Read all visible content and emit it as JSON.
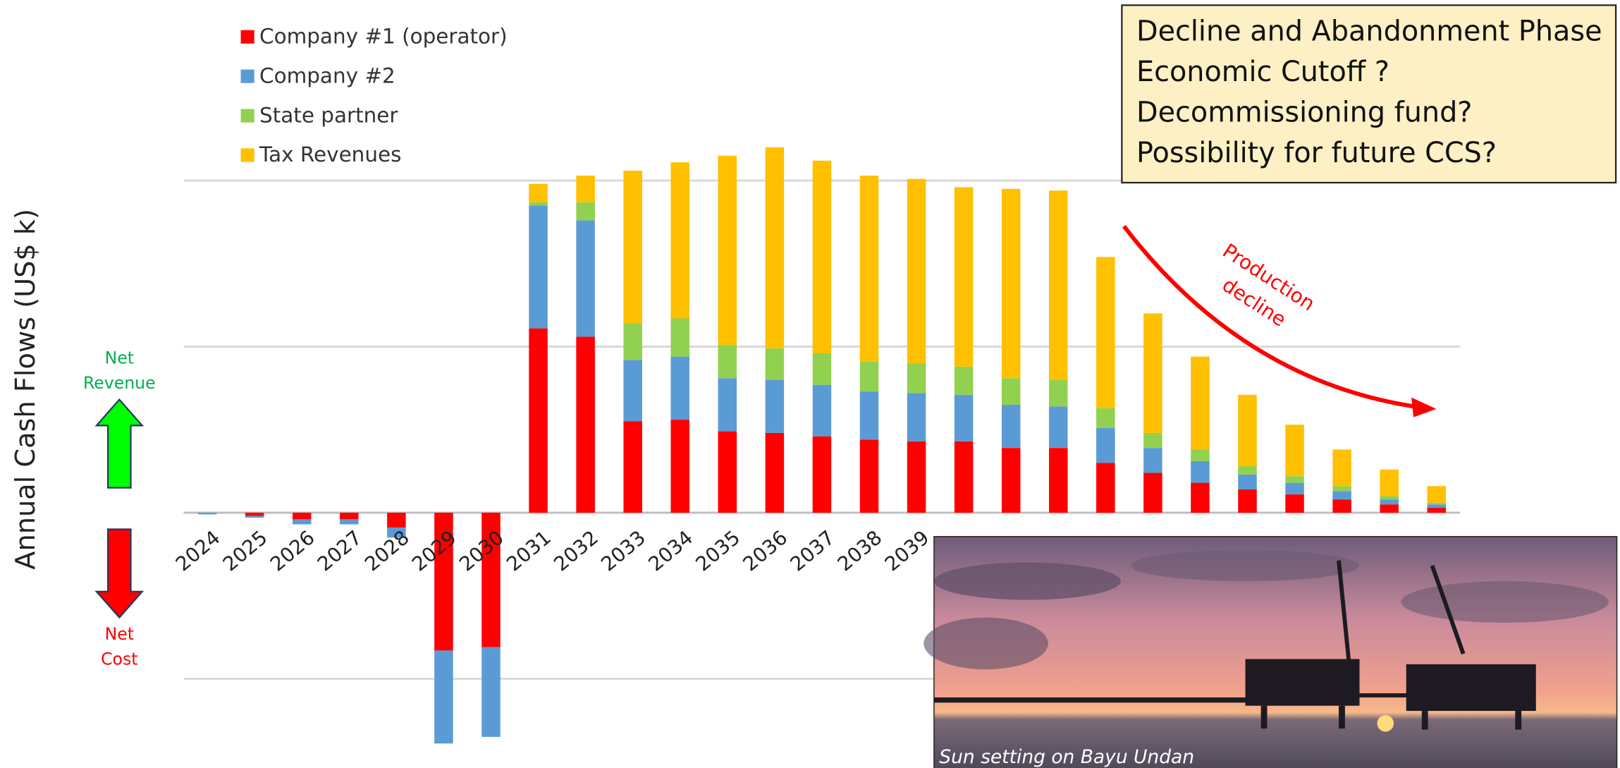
{
  "chart_data": {
    "type": "stacked_bar",
    "y_label": "Annual Cash Flows (US$ k)",
    "categories": [
      "2024",
      "2025",
      "2026",
      "2027",
      "2028",
      "2029",
      "2030",
      "2031",
      "2032",
      "2033",
      "2034",
      "2035",
      "2036",
      "2037",
      "2038",
      "2039",
      null,
      null,
      null,
      null,
      null,
      null,
      null,
      null,
      null,
      null,
      null
    ],
    "series": [
      {
        "name": "Company #1 (operator)",
        "color": "#ff0000",
        "values": [
          0,
          -2,
          -4,
          -4,
          -9,
          -83,
          -81,
          111,
          106,
          55,
          56,
          49,
          48,
          46,
          44,
          43,
          43,
          39,
          39,
          30,
          24,
          18,
          14,
          11,
          8,
          5,
          3
        ]
      },
      {
        "name": "Company #2",
        "color": "#5b9bd5",
        "values": [
          -1,
          -1,
          -3,
          -3,
          -6,
          -56,
          -54,
          74,
          70,
          37,
          38,
          32,
          32,
          31,
          29,
          29,
          28,
          26,
          25,
          21,
          15,
          13,
          9,
          7,
          5,
          3,
          2
        ]
      },
      {
        "name": "State partner",
        "color": "#92d050",
        "values": [
          0,
          0,
          0,
          0,
          0,
          0,
          0,
          2,
          11,
          22,
          23,
          20,
          19,
          19,
          18,
          18,
          17,
          16,
          16,
          12,
          9,
          7,
          5,
          4,
          3,
          2,
          1
        ]
      },
      {
        "name": "Tax Revenues",
        "color": "#ffc000",
        "values": [
          0,
          0,
          0,
          0,
          0,
          0,
          0,
          11,
          16,
          92,
          94,
          114,
          121,
          116,
          112,
          111,
          108,
          114,
          114,
          91,
          72,
          56,
          43,
          31,
          22,
          16,
          10
        ]
      }
    ],
    "ylim": [
      -150,
      225
    ],
    "yticks": [
      -100,
      0,
      100,
      200
    ],
    "grid": true,
    "legend": "top-left",
    "net_revenue": [
      "Net",
      "Revenue"
    ],
    "net_cost": [
      "Net",
      "Cost"
    ],
    "callout": [
      "Decline and Abandonment Phase",
      "Economic Cutoff ?",
      "Decommissioning fund?",
      "Possibility for future CCS?"
    ],
    "annotation": [
      "Production",
      "decline"
    ],
    "photo_caption": "Sun setting on Bayu Undan"
  }
}
